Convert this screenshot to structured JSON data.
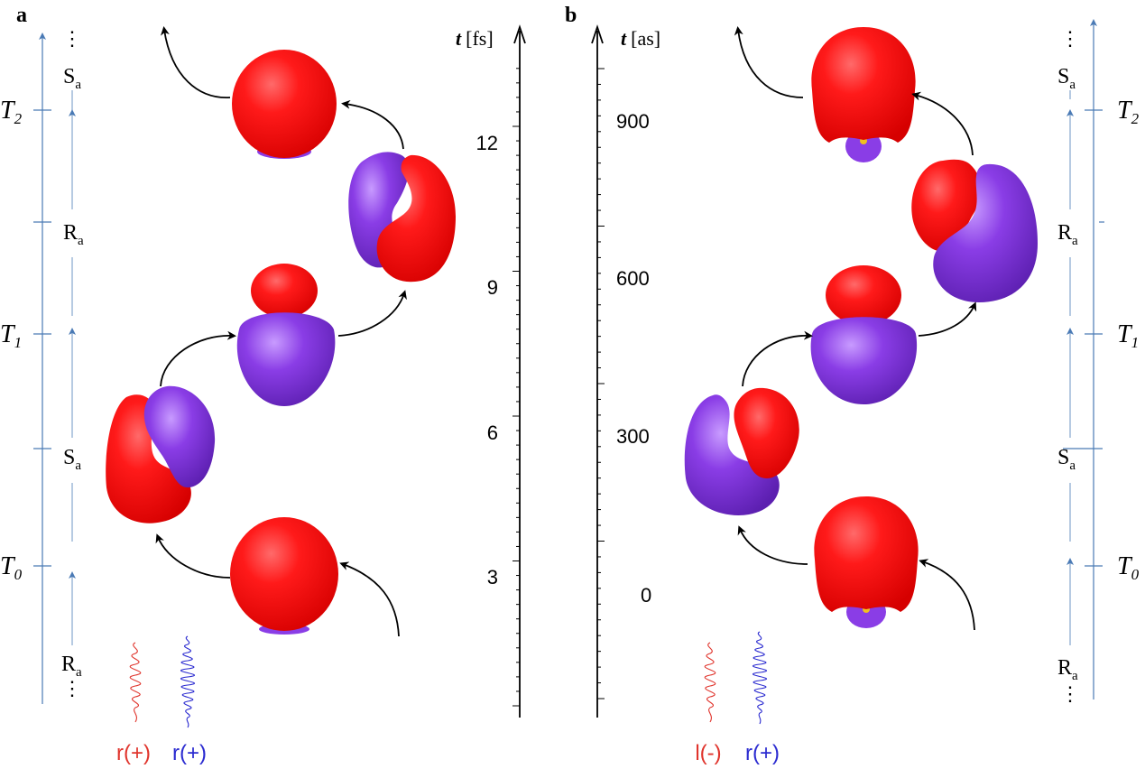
{
  "panels": {
    "a": {
      "letter": "a",
      "axis_label_var": "t",
      "axis_label_unit": "[fs]",
      "ticks": [
        "12",
        "9",
        "6",
        "3"
      ],
      "states_left": [
        "⋮",
        "S",
        "R",
        "S",
        "R",
        "⋮"
      ],
      "state_subscript": "a",
      "period_labels": [
        {
          "main": "T",
          "sub": "2"
        },
        {
          "main": "T",
          "sub": "1"
        },
        {
          "main": "T",
          "sub": "0"
        }
      ],
      "pulses": [
        "r(+)",
        "r(+)"
      ]
    },
    "b": {
      "letter": "b",
      "axis_label_var": "t",
      "axis_label_unit": "[as]",
      "ticks": [
        "900",
        "600",
        "300",
        "0"
      ],
      "states_right": [
        "⋮",
        "S",
        "R",
        "S",
        "R",
        "⋮"
      ],
      "state_subscript": "a",
      "period_labels": [
        {
          "main": "T",
          "sub": "2"
        },
        {
          "main": "T",
          "sub": "1"
        },
        {
          "main": "T",
          "sub": "0"
        }
      ],
      "pulses": [
        "l(-)",
        "r(+)"
      ]
    }
  },
  "colors": {
    "red_lobe": "#ff1a1a",
    "purple_lobe": "#8a3de6",
    "axis_blue": "#4a7ab5",
    "pulse_red": "#e0342c",
    "pulse_blue": "#2a2ad0"
  }
}
